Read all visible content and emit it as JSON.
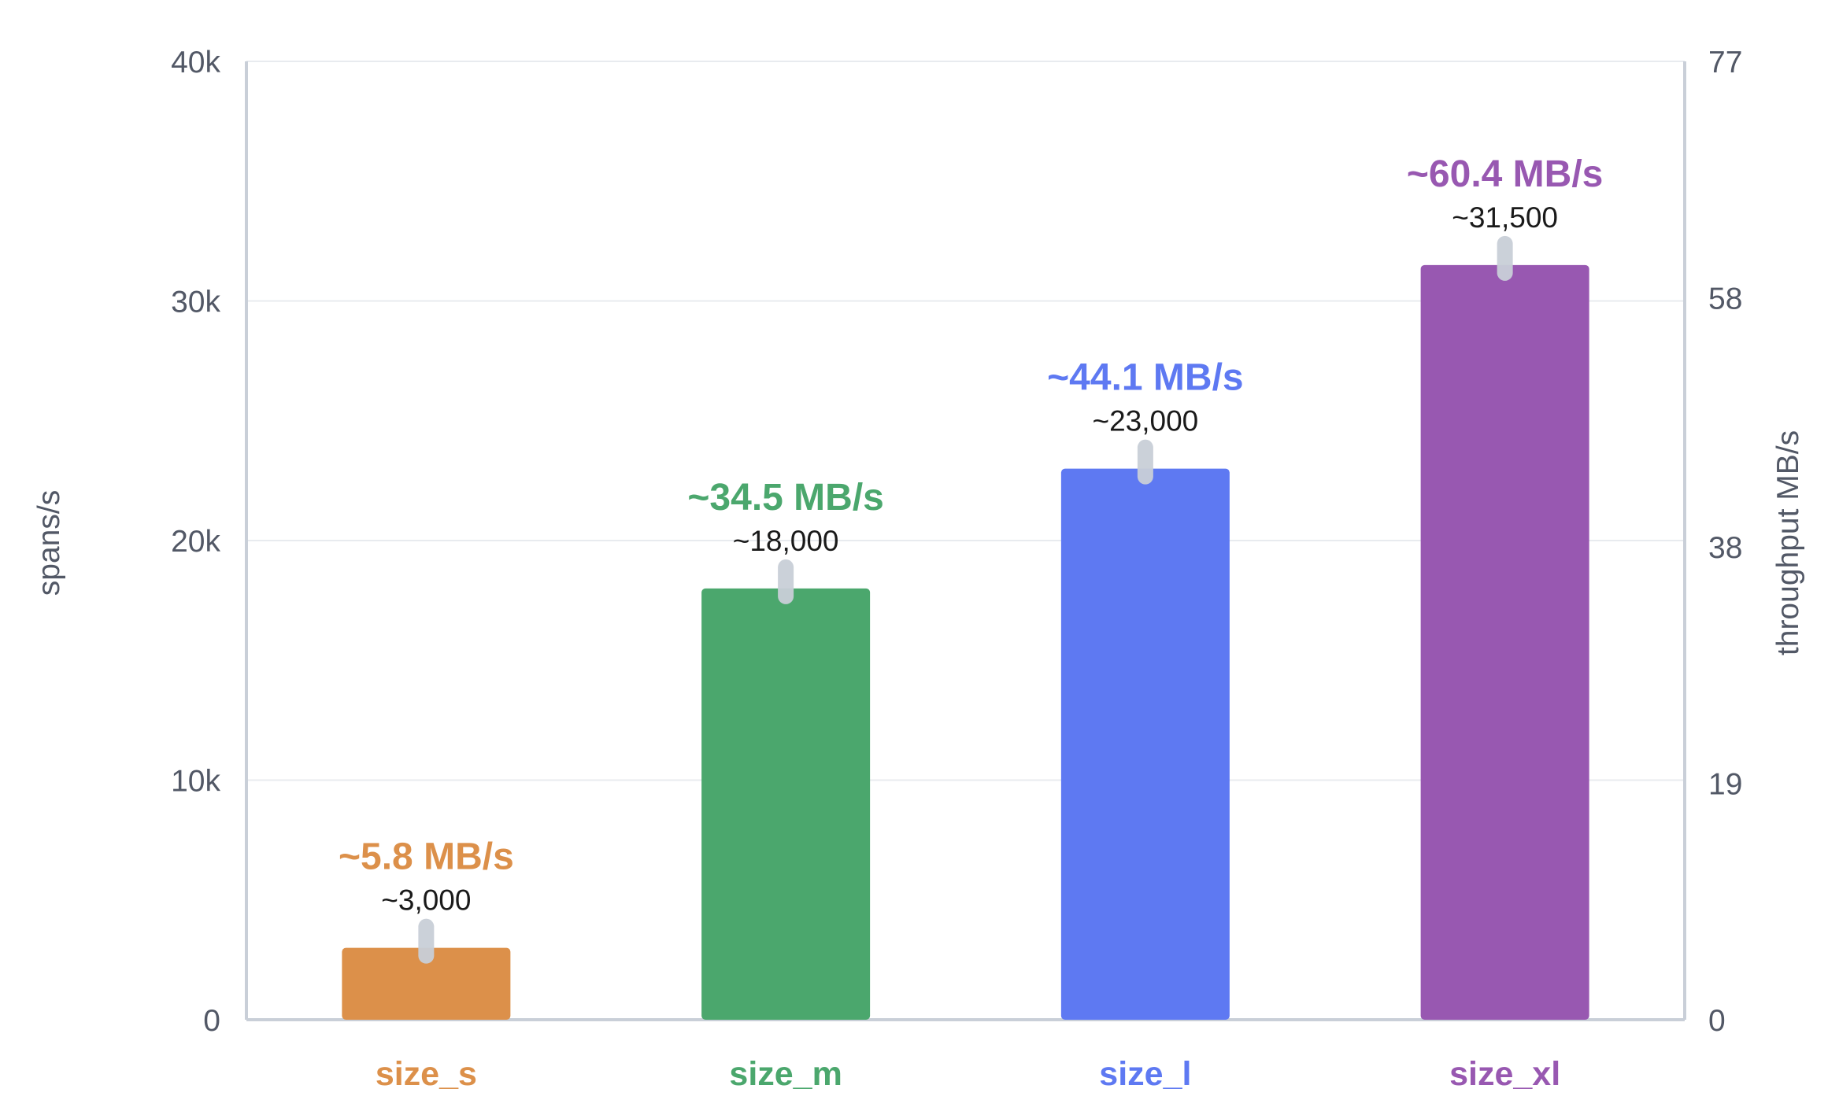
{
  "chart_data": {
    "type": "bar",
    "categories": [
      "size_s",
      "size_m",
      "size_l",
      "size_xl"
    ],
    "series": [
      {
        "values": [
          3000,
          18000,
          23000,
          31500
        ]
      }
    ],
    "value_labels": [
      "~3,000",
      "~18,000",
      "~23,000",
      "~31,500"
    ],
    "throughput_labels": [
      "~5.8 MB/s",
      "~34.5 MB/s",
      "~44.1 MB/s",
      "~60.4 MB/s"
    ],
    "throughput_values": [
      5.8,
      34.5,
      44.1,
      60.4
    ],
    "colors": [
      "#dc904a",
      "#4ba76d",
      "#5e79f2",
      "#9858b1"
    ],
    "error_bar_color": "#c9cfd8",
    "ylabel": "spans/s",
    "y2label": "throughput MB/s",
    "ylim": [
      0,
      40000
    ],
    "y2lim": [
      0,
      77
    ],
    "yticks": [
      0,
      10000,
      20000,
      30000,
      40000
    ],
    "ytick_labels": [
      "0",
      "10k",
      "20k",
      "30k",
      "40k"
    ],
    "y2ticks": [
      0,
      19,
      38,
      58,
      77
    ],
    "y2tick_labels": [
      "0",
      "19",
      "38",
      "58",
      "77"
    ],
    "grid": true,
    "legend": "none"
  }
}
